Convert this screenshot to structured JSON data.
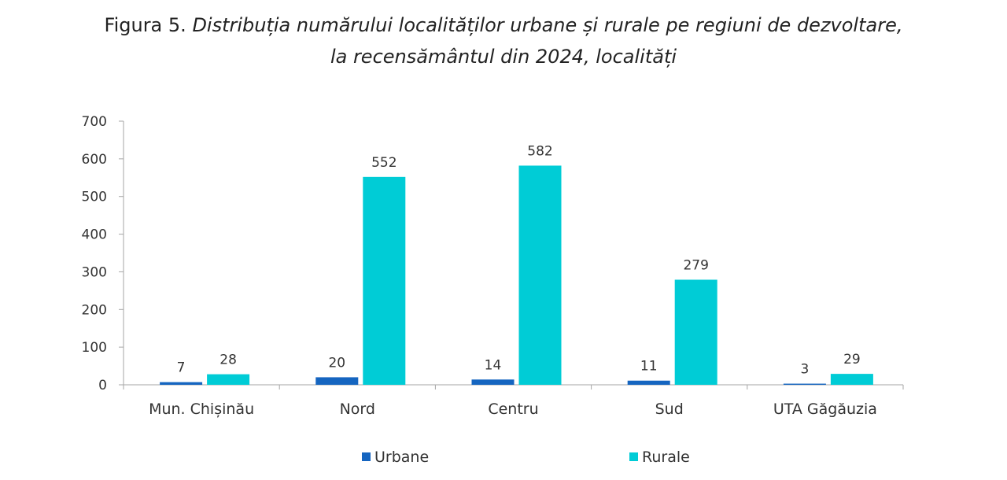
{
  "chart_data": {
    "type": "bar",
    "title_prefix": "Figura 5.",
    "title_line1": "Distribuția numărului localităților urbane și rurale pe regiuni de dezvoltare,",
    "title_line2": "la recensământul din 2024, localități",
    "categories": [
      "Mun. Chișinău",
      "Nord",
      "Centru",
      "Sud",
      "UTA Găgăuzia"
    ],
    "series": [
      {
        "name": "Urbane",
        "values": [
          7,
          20,
          14,
          11,
          3
        ],
        "color": "#1565C0"
      },
      {
        "name": "Rurale",
        "values": [
          28,
          552,
          582,
          279,
          29
        ],
        "color": "#00CCD6"
      }
    ],
    "ylim": [
      0,
      700
    ],
    "yticks": [
      "0",
      "100",
      "200",
      "300",
      "400",
      "500",
      "600",
      "700"
    ],
    "legend_position": "bottom",
    "grid": false
  }
}
